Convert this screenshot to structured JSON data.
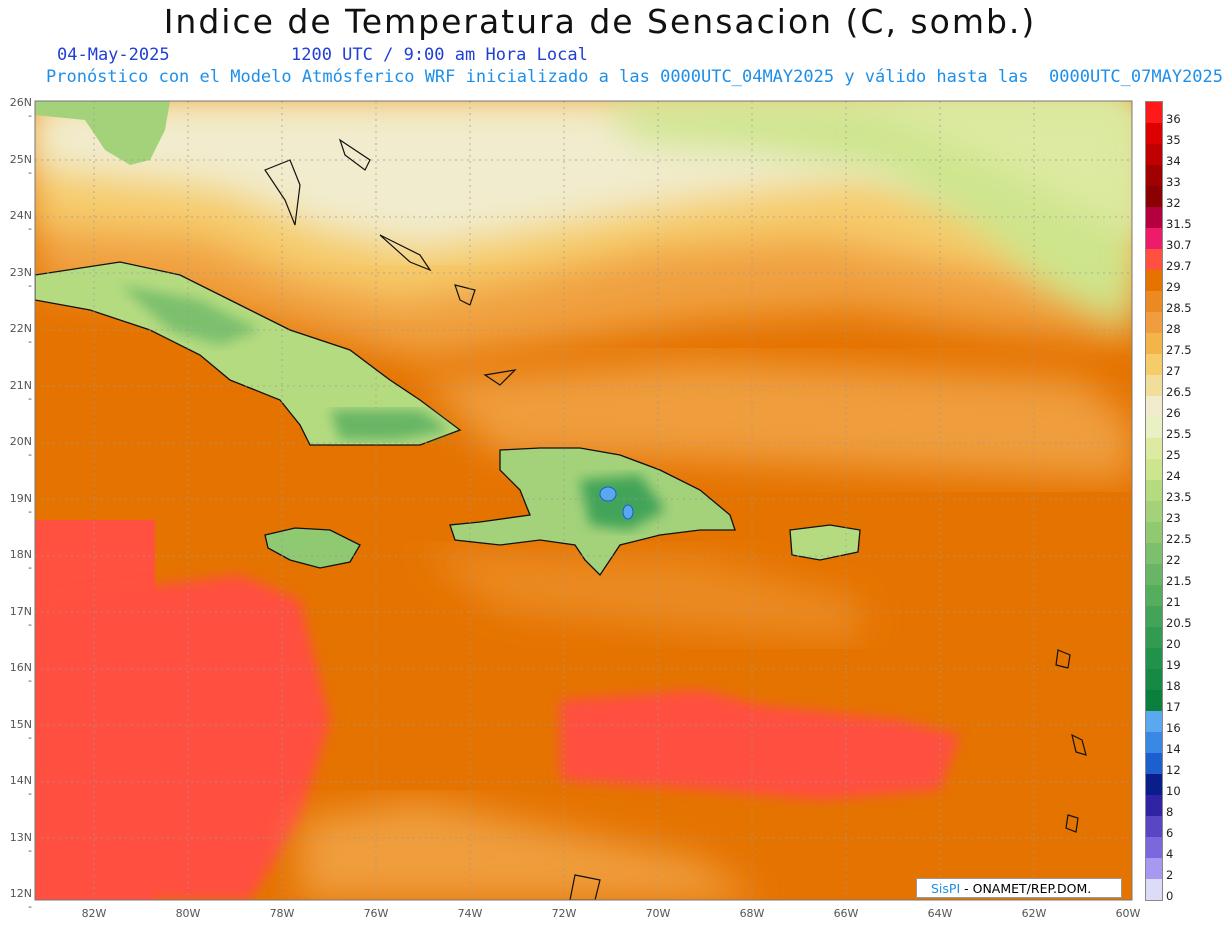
{
  "header": {
    "title": "Indice de Temperatura de Sensacion (C, somb.)",
    "date": "04-May-2025",
    "time": "1200 UTC / 9:00 am Hora Local",
    "forecast_line": "Pronóstico con el Modelo Atmósferico WRF inicializado a las 0000UTC_04MAY2025 y válido hasta las  0000UTC_07MAY2025"
  },
  "axes": {
    "lat_labels": [
      "26N",
      "25N",
      "24N",
      "23N",
      "22N",
      "21N",
      "20N",
      "19N",
      "18N",
      "17N",
      "16N",
      "15N",
      "14N",
      "13N",
      "12N"
    ],
    "lon_labels": [
      "82W",
      "80W",
      "78W",
      "76W",
      "74W",
      "72W",
      "70W",
      "68W",
      "66W",
      "64W",
      "62W",
      "60W"
    ]
  },
  "legend": {
    "items": [
      {
        "label": "36",
        "color": "#ff1a1a"
      },
      {
        "label": "35",
        "color": "#dd0000"
      },
      {
        "label": "34",
        "color": "#c00000"
      },
      {
        "label": "33",
        "color": "#a00000"
      },
      {
        "label": "32",
        "color": "#8b0000"
      },
      {
        "label": "31.5",
        "color": "#b50040"
      },
      {
        "label": "30.7",
        "color": "#ee1b6a"
      },
      {
        "label": "29.7",
        "color": "#ff5040"
      },
      {
        "label": "29",
        "color": "#e57300"
      },
      {
        "label": "28.5",
        "color": "#eb8a22"
      },
      {
        "label": "28",
        "color": "#ef9d3e"
      },
      {
        "label": "27.5",
        "color": "#f3b448"
      },
      {
        "label": "27",
        "color": "#f6cb6a"
      },
      {
        "label": "26.5",
        "color": "#f2de9a"
      },
      {
        "label": "26",
        "color": "#f1ecce"
      },
      {
        "label": "25.5",
        "color": "#e9f0c2"
      },
      {
        "label": "25",
        "color": "#ddeaa2"
      },
      {
        "label": "24",
        "color": "#cde58c"
      },
      {
        "label": "23.5",
        "color": "#b5db80"
      },
      {
        "label": "23",
        "color": "#a3d27a"
      },
      {
        "label": "22.5",
        "color": "#8fca72"
      },
      {
        "label": "22",
        "color": "#7cc06d"
      },
      {
        "label": "21.5",
        "color": "#68b665"
      },
      {
        "label": "21",
        "color": "#55ad5e"
      },
      {
        "label": "20.5",
        "color": "#43a458"
      },
      {
        "label": "20",
        "color": "#319b52"
      },
      {
        "label": "19",
        "color": "#21924b"
      },
      {
        "label": "18",
        "color": "#168a44"
      },
      {
        "label": "17",
        "color": "#0b7f3c"
      },
      {
        "label": "16",
        "color": "#5aa8f0"
      },
      {
        "label": "14",
        "color": "#3a88e6"
      },
      {
        "label": "12",
        "color": "#1e5fd0"
      },
      {
        "label": "10",
        "color": "#0a1e8a"
      },
      {
        "label": "8",
        "color": "#3024a4"
      },
      {
        "label": "6",
        "color": "#5846c4"
      },
      {
        "label": "4",
        "color": "#7a68dc"
      },
      {
        "label": "2",
        "color": "#a898f0"
      },
      {
        "label": "0",
        "color": "#dcdcf8"
      }
    ]
  },
  "credit": {
    "brand": "SisPI",
    "text": " - ONAMET/REP.DOM."
  }
}
